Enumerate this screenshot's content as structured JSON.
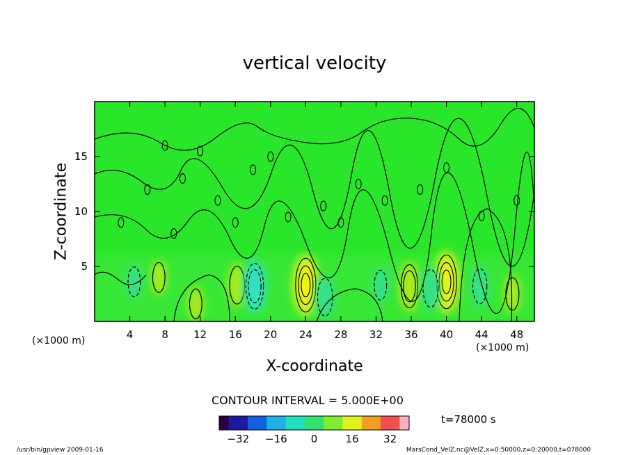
{
  "chart_data": {
    "type": "heatmap",
    "title": "vertical velocity",
    "xlabel": "X-coordinate",
    "ylabel": "Z-coordinate",
    "x_unit_left": "(×1000 m)",
    "x_unit_right": "(×1000 m)",
    "xlim": [
      0,
      50
    ],
    "ylim": [
      0,
      20
    ],
    "x_ticks": [
      4,
      8,
      12,
      16,
      20,
      24,
      28,
      32,
      36,
      40,
      44,
      48
    ],
    "x_tick_labels": [
      "4",
      "8",
      "12",
      "16",
      "20",
      "24",
      "28",
      "32",
      "36",
      "40",
      "44",
      "48"
    ],
    "y_ticks": [
      5,
      10,
      15
    ],
    "y_tick_labels": [
      "5",
      "10",
      "15"
    ],
    "contour_interval_text": "CONTOUR INTERVAL = 5.000E+00",
    "time_text": "t=78000 s",
    "colorbar": {
      "range": [
        -40,
        40
      ],
      "ticks": [
        -32,
        -16,
        0,
        16,
        32
      ],
      "tick_labels": [
        "−32",
        "−16",
        "0",
        "16",
        "32"
      ]
    },
    "features": [
      {
        "x": 24,
        "z": 3.3,
        "w": 12,
        "sign": "up"
      },
      {
        "x": 40,
        "z": 3.6,
        "w": 12,
        "sign": "up"
      },
      {
        "x": 35.8,
        "z": 3.2,
        "w": 8,
        "sign": "up"
      },
      {
        "x": 16.2,
        "z": 3.3,
        "w": 6,
        "sign": "up"
      },
      {
        "x": 47.5,
        "z": 2.5,
        "w": 4,
        "sign": "up"
      },
      {
        "x": 7.3,
        "z": 4.0,
        "w": 3,
        "sign": "up"
      },
      {
        "x": 11.5,
        "z": 1.6,
        "w": 3,
        "sign": "up"
      },
      {
        "x": 18.2,
        "z": 3.2,
        "w": -9,
        "sign": "down"
      },
      {
        "x": 26.2,
        "z": 2.2,
        "w": -6,
        "sign": "down"
      },
      {
        "x": 38.2,
        "z": 3.0,
        "w": -6,
        "sign": "down"
      },
      {
        "x": 43.8,
        "z": 3.2,
        "w": -5,
        "sign": "down"
      },
      {
        "x": 4.5,
        "z": 3.6,
        "w": -3,
        "sign": "down"
      },
      {
        "x": 32.5,
        "z": 3.3,
        "w": -3,
        "sign": "down"
      }
    ]
  },
  "footer": {
    "left": "/usr/bin/gpview   2009-01-16",
    "right": "MarsCond_VelZ.nc@VelZ,x=0:50000,z=0:20000,t=078000"
  }
}
